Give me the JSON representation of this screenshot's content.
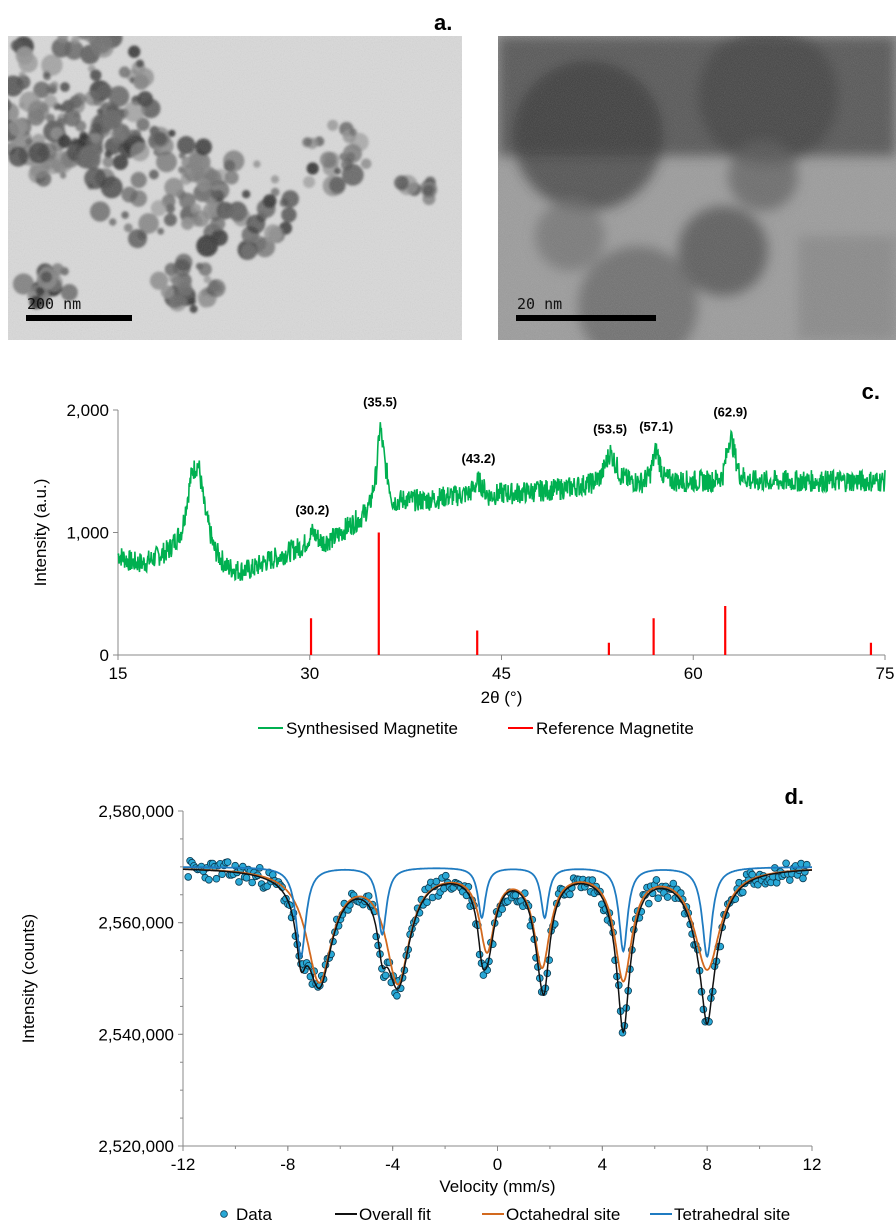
{
  "figure": {
    "panel_a_label": "a.",
    "panel_c_label": "c.",
    "panel_d_label": "d."
  },
  "micrographs": [
    {
      "scale_text": "200 nm"
    },
    {
      "scale_text": "20 nm"
    }
  ],
  "chart_data": [
    {
      "type": "line",
      "panel": "c.",
      "xlabel": "2θ (°)",
      "ylabel": "Intensity (a.u.)",
      "xlim": [
        15,
        75
      ],
      "ylim": [
        0,
        2000
      ],
      "xticks": [
        15,
        30,
        45,
        60,
        75
      ],
      "yticks": [
        0,
        1000,
        2000
      ],
      "ytick_labels": [
        "0",
        "1,000",
        "2,000"
      ],
      "grid": false,
      "legend_position": "bottom",
      "series": [
        {
          "name": "Synthesised Magnetite",
          "color": "#00b050",
          "x": [
            15,
            16,
            17,
            18,
            19,
            20,
            20.8,
            21.3,
            21.8,
            22.5,
            23.5,
            24.5,
            25.5,
            26.5,
            27.5,
            28.5,
            29.5,
            30.2,
            31,
            32,
            33,
            34,
            34.7,
            35.2,
            35.5,
            35.9,
            36.5,
            37.5,
            38.5,
            39.5,
            40.5,
            41.5,
            42.5,
            43.2,
            44,
            45,
            46,
            47,
            48,
            49,
            50,
            51,
            52,
            52.8,
            53.5,
            54.3,
            55,
            56,
            56.6,
            57.1,
            57.7,
            58.5,
            59.5,
            60.5,
            61.5,
            62.3,
            62.9,
            63.6,
            64.5,
            66,
            68,
            70,
            72,
            74,
            75
          ],
          "y": [
            820,
            760,
            750,
            800,
            860,
            1020,
            1500,
            1560,
            1180,
            870,
            720,
            690,
            700,
            760,
            800,
            850,
            890,
            1000,
            920,
            960,
            1050,
            1120,
            1220,
            1480,
            1880,
            1550,
            1250,
            1270,
            1260,
            1270,
            1290,
            1300,
            1320,
            1420,
            1300,
            1320,
            1320,
            1330,
            1340,
            1350,
            1360,
            1380,
            1400,
            1460,
            1660,
            1470,
            1420,
            1410,
            1470,
            1680,
            1450,
            1420,
            1420,
            1420,
            1420,
            1460,
            1800,
            1480,
            1420,
            1420,
            1420,
            1420,
            1420,
            1420,
            1420
          ],
          "noise_amplitude": 90,
          "annotations": [
            {
              "x": 30.2,
              "y": 1000,
              "label": "(30.2)"
            },
            {
              "x": 35.5,
              "y": 1880,
              "label": "(35.5)"
            },
            {
              "x": 43.2,
              "y": 1420,
              "label": "(43.2)"
            },
            {
              "x": 53.5,
              "y": 1660,
              "label": "(53.5)"
            },
            {
              "x": 57.1,
              "y": 1680,
              "label": "(57.1)"
            },
            {
              "x": 62.9,
              "y": 1800,
              "label": "(62.9)"
            }
          ]
        },
        {
          "name": "Reference Magnetite",
          "color": "#ff0000",
          "style": "sticks",
          "x": [
            30.1,
            35.4,
            43.1,
            53.4,
            56.9,
            62.5,
            73.9
          ],
          "y": [
            300,
            1000,
            200,
            100,
            300,
            400,
            100
          ]
        }
      ]
    },
    {
      "type": "scatter",
      "panel": "d.",
      "xlabel": "Velocity (mm/s)",
      "ylabel": "Intensity (counts)",
      "xlim": [
        -12,
        12
      ],
      "ylim": [
        2520000,
        2580000
      ],
      "xticks": [
        -12,
        -8,
        -4,
        0,
        4,
        8,
        12
      ],
      "yticks": [
        2520000,
        2540000,
        2560000,
        2580000
      ],
      "ytick_labels": [
        "2,520,000",
        "2,540,000",
        "2,560,000",
        "2,580,000"
      ],
      "grid": false,
      "legend_position": "bottom",
      "baseline": 2570000,
      "series": [
        {
          "name": "Data",
          "color": "#29a8d6",
          "edge": "#0b3b52",
          "marker": "circle",
          "x_range": [
            -11.8,
            11.8
          ],
          "n_points": 330,
          "noise_amplitude": 1800
        },
        {
          "name": "Overall fit",
          "color": "#111111",
          "style": "line"
        },
        {
          "name": "Octahedral site",
          "color": "#d2691e",
          "style": "line",
          "lines": [
            {
              "center": -6.8,
              "depth": 20000,
              "width": 1.2
            },
            {
              "center": -3.8,
              "depth": 20000,
              "width": 1.1
            },
            {
              "center": -0.4,
              "depth": 14000,
              "width": 0.7
            },
            {
              "center": 1.7,
              "depth": 17000,
              "width": 0.75
            },
            {
              "center": 4.8,
              "depth": 19500,
              "width": 0.8
            },
            {
              "center": 8.0,
              "depth": 18000,
              "width": 1.2
            }
          ]
        },
        {
          "name": "Tetrahedral site",
          "color": "#1f7bc1",
          "style": "line",
          "lines": [
            {
              "center": -7.5,
              "depth": 16000,
              "width": 0.45
            },
            {
              "center": -4.4,
              "depth": 12000,
              "width": 0.4
            },
            {
              "center": -0.6,
              "depth": 9000,
              "width": 0.35
            },
            {
              "center": 1.8,
              "depth": 9000,
              "width": 0.35
            },
            {
              "center": 4.8,
              "depth": 15000,
              "width": 0.4
            },
            {
              "center": 8.0,
              "depth": 16000,
              "width": 0.45
            }
          ]
        }
      ]
    }
  ]
}
